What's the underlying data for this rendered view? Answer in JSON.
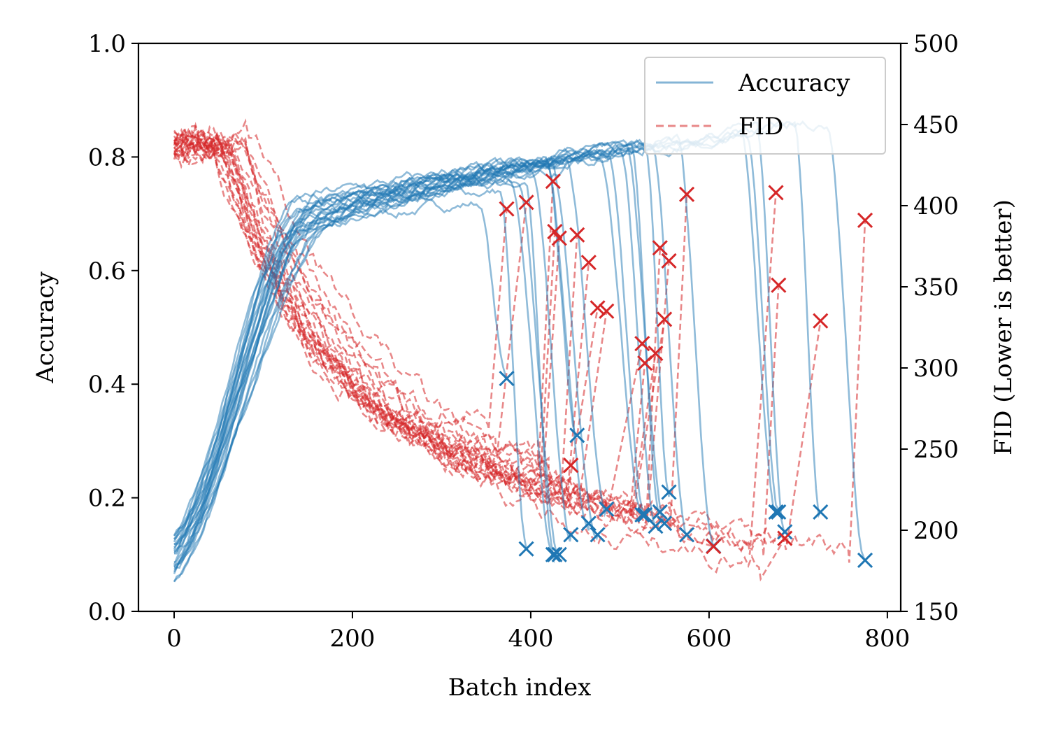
{
  "chart_data": {
    "type": "line",
    "xlabel": "Batch index",
    "ylabel": "Accuracy",
    "y2label": "FID (Lower is better)",
    "xlim": [
      -40,
      815
    ],
    "ylim": [
      0,
      1
    ],
    "y2lim": [
      150,
      500
    ],
    "x_ticks": [
      0,
      200,
      400,
      600,
      800
    ],
    "x_tick_labels": [
      "0",
      "200",
      "400",
      "600",
      "800"
    ],
    "y_ticks": [
      0,
      0.2,
      0.4,
      0.6,
      0.8,
      1.0
    ],
    "y_tick_labels": [
      "0.0",
      "0.2",
      "0.4",
      "0.6",
      "0.8",
      "1.0"
    ],
    "y2_ticks": [
      150,
      200,
      250,
      300,
      350,
      400,
      450,
      500
    ],
    "y2_tick_labels": [
      "150",
      "200",
      "250",
      "300",
      "350",
      "400",
      "450",
      "500"
    ],
    "grid": false,
    "legend": {
      "position": "top-right",
      "entries": [
        {
          "label": "Accuracy",
          "color": "#1f77b4",
          "style": "solid"
        },
        {
          "label": "FID",
          "color": "#d62728",
          "style": "dashed"
        }
      ]
    },
    "colors": {
      "accuracy": "#1f77b4",
      "fid": "#d62728"
    },
    "runs": [
      {
        "end": 373,
        "acc_plateau": 0.72,
        "acc_end": 0.41,
        "fid_min": 262,
        "fid_end": 398
      },
      {
        "end": 395,
        "acc_plateau": 0.74,
        "acc_end": 0.11,
        "fid_min": 245,
        "fid_end": 402
      },
      {
        "end": 425,
        "acc_plateau": 0.76,
        "acc_end": 0.1,
        "fid_min": 238,
        "fid_end": 415
      },
      {
        "end": 427,
        "acc_plateau": 0.77,
        "acc_end": 0.1,
        "fid_min": 233,
        "fid_end": 384
      },
      {
        "end": 432,
        "acc_plateau": 0.76,
        "acc_end": 0.1,
        "fid_min": 236,
        "fid_end": 380
      },
      {
        "end": 445,
        "acc_plateau": 0.78,
        "acc_end": 0.135,
        "fid_min": 228,
        "fid_end": 240
      },
      {
        "end": 452,
        "acc_plateau": 0.79,
        "acc_end": 0.31,
        "fid_min": 226,
        "fid_end": 382
      },
      {
        "end": 465,
        "acc_plateau": 0.79,
        "acc_end": 0.155,
        "fid_min": 224,
        "fid_end": 365
      },
      {
        "end": 475,
        "acc_plateau": 0.8,
        "acc_end": 0.135,
        "fid_min": 220,
        "fid_end": 337
      },
      {
        "end": 485,
        "acc_plateau": 0.8,
        "acc_end": 0.18,
        "fid_min": 218,
        "fid_end": 335
      },
      {
        "end": 525,
        "acc_plateau": 0.81,
        "acc_end": 0.17,
        "fid_min": 210,
        "fid_end": 315
      },
      {
        "end": 528,
        "acc_plateau": 0.81,
        "acc_end": 0.17,
        "fid_min": 209,
        "fid_end": 303
      },
      {
        "end": 540,
        "acc_plateau": 0.81,
        "acc_end": 0.15,
        "fid_min": 206,
        "fid_end": 309
      },
      {
        "end": 545,
        "acc_plateau": 0.82,
        "acc_end": 0.175,
        "fid_min": 205,
        "fid_end": 374
      },
      {
        "end": 550,
        "acc_plateau": 0.82,
        "acc_end": 0.155,
        "fid_min": 204,
        "fid_end": 330
      },
      {
        "end": 555,
        "acc_plateau": 0.82,
        "acc_end": 0.21,
        "fid_min": 203,
        "fid_end": 366
      },
      {
        "end": 575,
        "acc_plateau": 0.83,
        "acc_end": 0.135,
        "fid_min": 200,
        "fid_end": 407
      },
      {
        "end": 605,
        "acc_plateau": 0.83,
        "acc_end": 0.115,
        "fid_min": 196,
        "fid_end": 190
      },
      {
        "end": 675,
        "acc_plateau": 0.84,
        "acc_end": 0.175,
        "fid_min": 185,
        "fid_end": 408
      },
      {
        "end": 678,
        "acc_plateau": 0.84,
        "acc_end": 0.175,
        "fid_min": 184,
        "fid_end": 351
      },
      {
        "end": 685,
        "acc_plateau": 0.85,
        "acc_end": 0.14,
        "fid_min": 170,
        "fid_end": 195
      },
      {
        "end": 725,
        "acc_plateau": 0.86,
        "acc_end": 0.175,
        "fid_min": 188,
        "fid_end": 329
      },
      {
        "end": 775,
        "acc_plateau": 0.86,
        "acc_end": 0.09,
        "fid_min": 180,
        "fid_end": 391
      }
    ]
  }
}
